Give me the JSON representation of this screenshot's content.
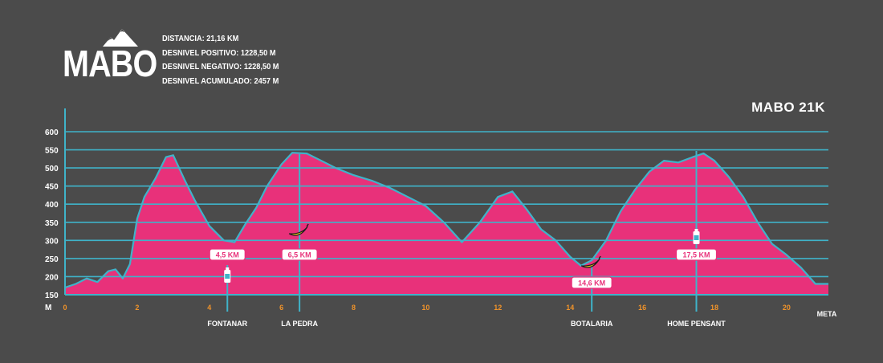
{
  "brand": {
    "name": "MABO"
  },
  "stats": {
    "distance": "DISTANCIA: 21,16 KM",
    "positive": "DESNIVEL POSITIVO: 1228,50 M",
    "negative": "DESNIVEL NEGATIVO: 1228,50 M",
    "accumulated": "DESNIVEL ACUMULADO: 2457 M"
  },
  "colors": {
    "background": "#4b4b4b",
    "fill": "#e8317a",
    "line": "#3fb3c9",
    "axis_ticks": "#f0932a"
  },
  "chart_data": {
    "type": "area",
    "title": "MABO 21K",
    "ylabel": "M",
    "xlim": [
      0,
      21.16
    ],
    "ylim": [
      150,
      600
    ],
    "y_ticks": [
      150,
      200,
      250,
      300,
      350,
      400,
      450,
      500,
      550,
      600
    ],
    "x_ticks": [
      0,
      2,
      4,
      6,
      8,
      10,
      12,
      14,
      16,
      18,
      20
    ],
    "x_end_label": "META",
    "grid": true,
    "x": [
      0,
      0.3,
      0.6,
      0.9,
      1.2,
      1.4,
      1.6,
      1.8,
      2.0,
      2.2,
      2.5,
      2.8,
      3.0,
      3.3,
      3.6,
      4.0,
      4.4,
      4.7,
      5.0,
      5.3,
      5.6,
      6.0,
      6.3,
      6.7,
      7.0,
      7.5,
      8.0,
      8.5,
      9.0,
      9.5,
      10.0,
      10.5,
      11.0,
      11.5,
      12.0,
      12.4,
      12.8,
      13.2,
      13.6,
      14.0,
      14.3,
      14.6,
      15.0,
      15.4,
      15.8,
      16.2,
      16.6,
      17.0,
      17.4,
      17.7,
      18.0,
      18.4,
      18.8,
      19.2,
      19.6,
      20.0,
      20.4,
      20.8,
      21.16
    ],
    "y": [
      170,
      180,
      195,
      185,
      215,
      220,
      195,
      235,
      360,
      420,
      470,
      530,
      535,
      470,
      410,
      340,
      300,
      295,
      345,
      390,
      450,
      510,
      542,
      540,
      525,
      500,
      480,
      465,
      445,
      420,
      395,
      350,
      295,
      350,
      420,
      435,
      385,
      330,
      300,
      255,
      230,
      245,
      300,
      380,
      440,
      490,
      520,
      515,
      530,
      540,
      520,
      475,
      420,
      350,
      290,
      260,
      225,
      180,
      180
    ],
    "markers": [
      {
        "km_label": "4,5 KM",
        "x": 4.5,
        "place": "FONTANAR",
        "icon": "water-bottle-icon"
      },
      {
        "km_label": "6,5 KM",
        "x": 6.5,
        "place": "LA PEDRA",
        "icon": "banana-icon"
      },
      {
        "km_label": "14,6 KM",
        "x": 14.6,
        "place": "BOTALARIA",
        "icon": "banana-icon"
      },
      {
        "km_label": "17,5 KM",
        "x": 17.5,
        "place": "HOME PENSANT",
        "icon": "water-bottle-icon"
      }
    ]
  }
}
